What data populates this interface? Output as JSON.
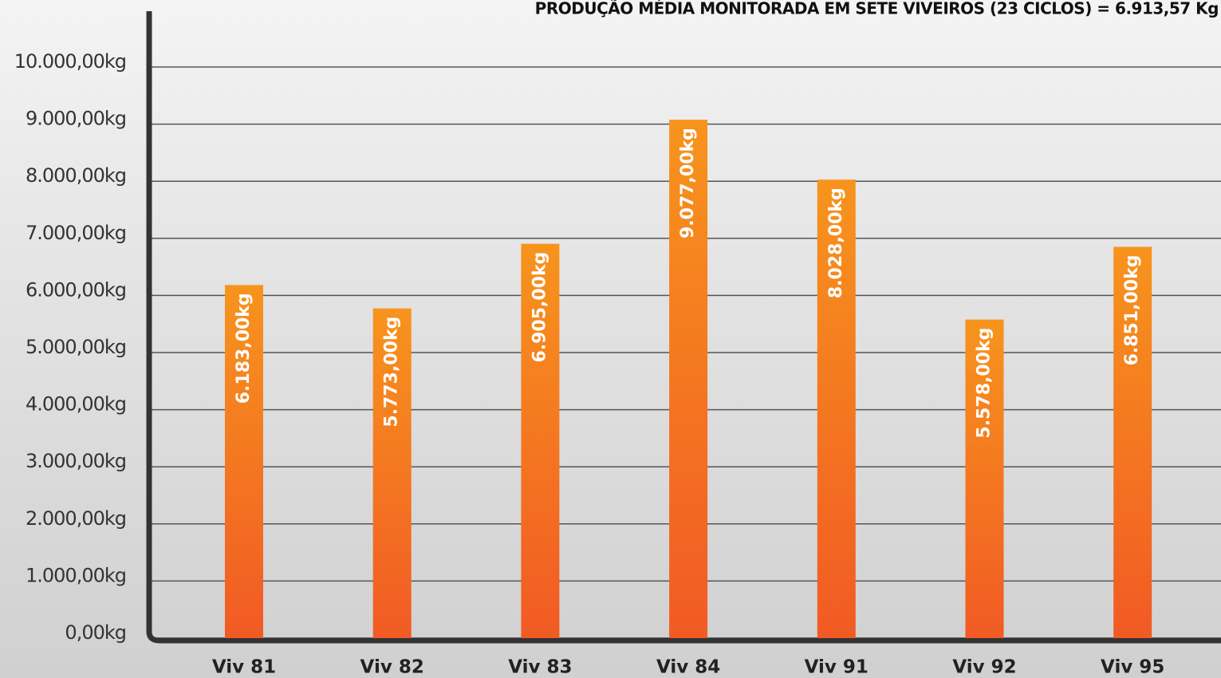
{
  "chart_data": {
    "type": "bar",
    "title": "PRODUÇÃO MÉDIA MONITORADA EM SETE VIVEIROS (23 CICLOS) = 6.913,57 Kg",
    "categories": [
      "Viv 81",
      "Viv 82",
      "Viv 83",
      "Viv 84",
      "Viv 91",
      "Viv 92",
      "Viv 95"
    ],
    "values": [
      6183,
      5773,
      6905,
      9077,
      8028,
      5578,
      6851
    ],
    "value_labels": [
      "6.183,00kg",
      "5.773,00kg",
      "6.905,00kg",
      "9.077,00kg",
      "8.028,00kg",
      "5.578,00kg",
      "6.851,00kg"
    ],
    "color": "#f47920",
    "ylim": [
      0,
      10000
    ],
    "yticks": [
      {
        "value": 0,
        "label": "0,00kg"
      },
      {
        "value": 1000,
        "label": "1.000,00kg"
      },
      {
        "value": 2000,
        "label": "2.000,00kg"
      },
      {
        "value": 3000,
        "label": "3.000,00kg"
      },
      {
        "value": 4000,
        "label": "4.000,00kg"
      },
      {
        "value": 5000,
        "label": "5.000,00kg"
      },
      {
        "value": 6000,
        "label": "6.000,00kg"
      },
      {
        "value": 7000,
        "label": "7.000,00kg"
      },
      {
        "value": 8000,
        "label": "8.000,00kg"
      },
      {
        "value": 9000,
        "label": "9.000,00kg"
      },
      {
        "value": 10000,
        "label": "10.000,00kg"
      }
    ],
    "grid": true
  }
}
